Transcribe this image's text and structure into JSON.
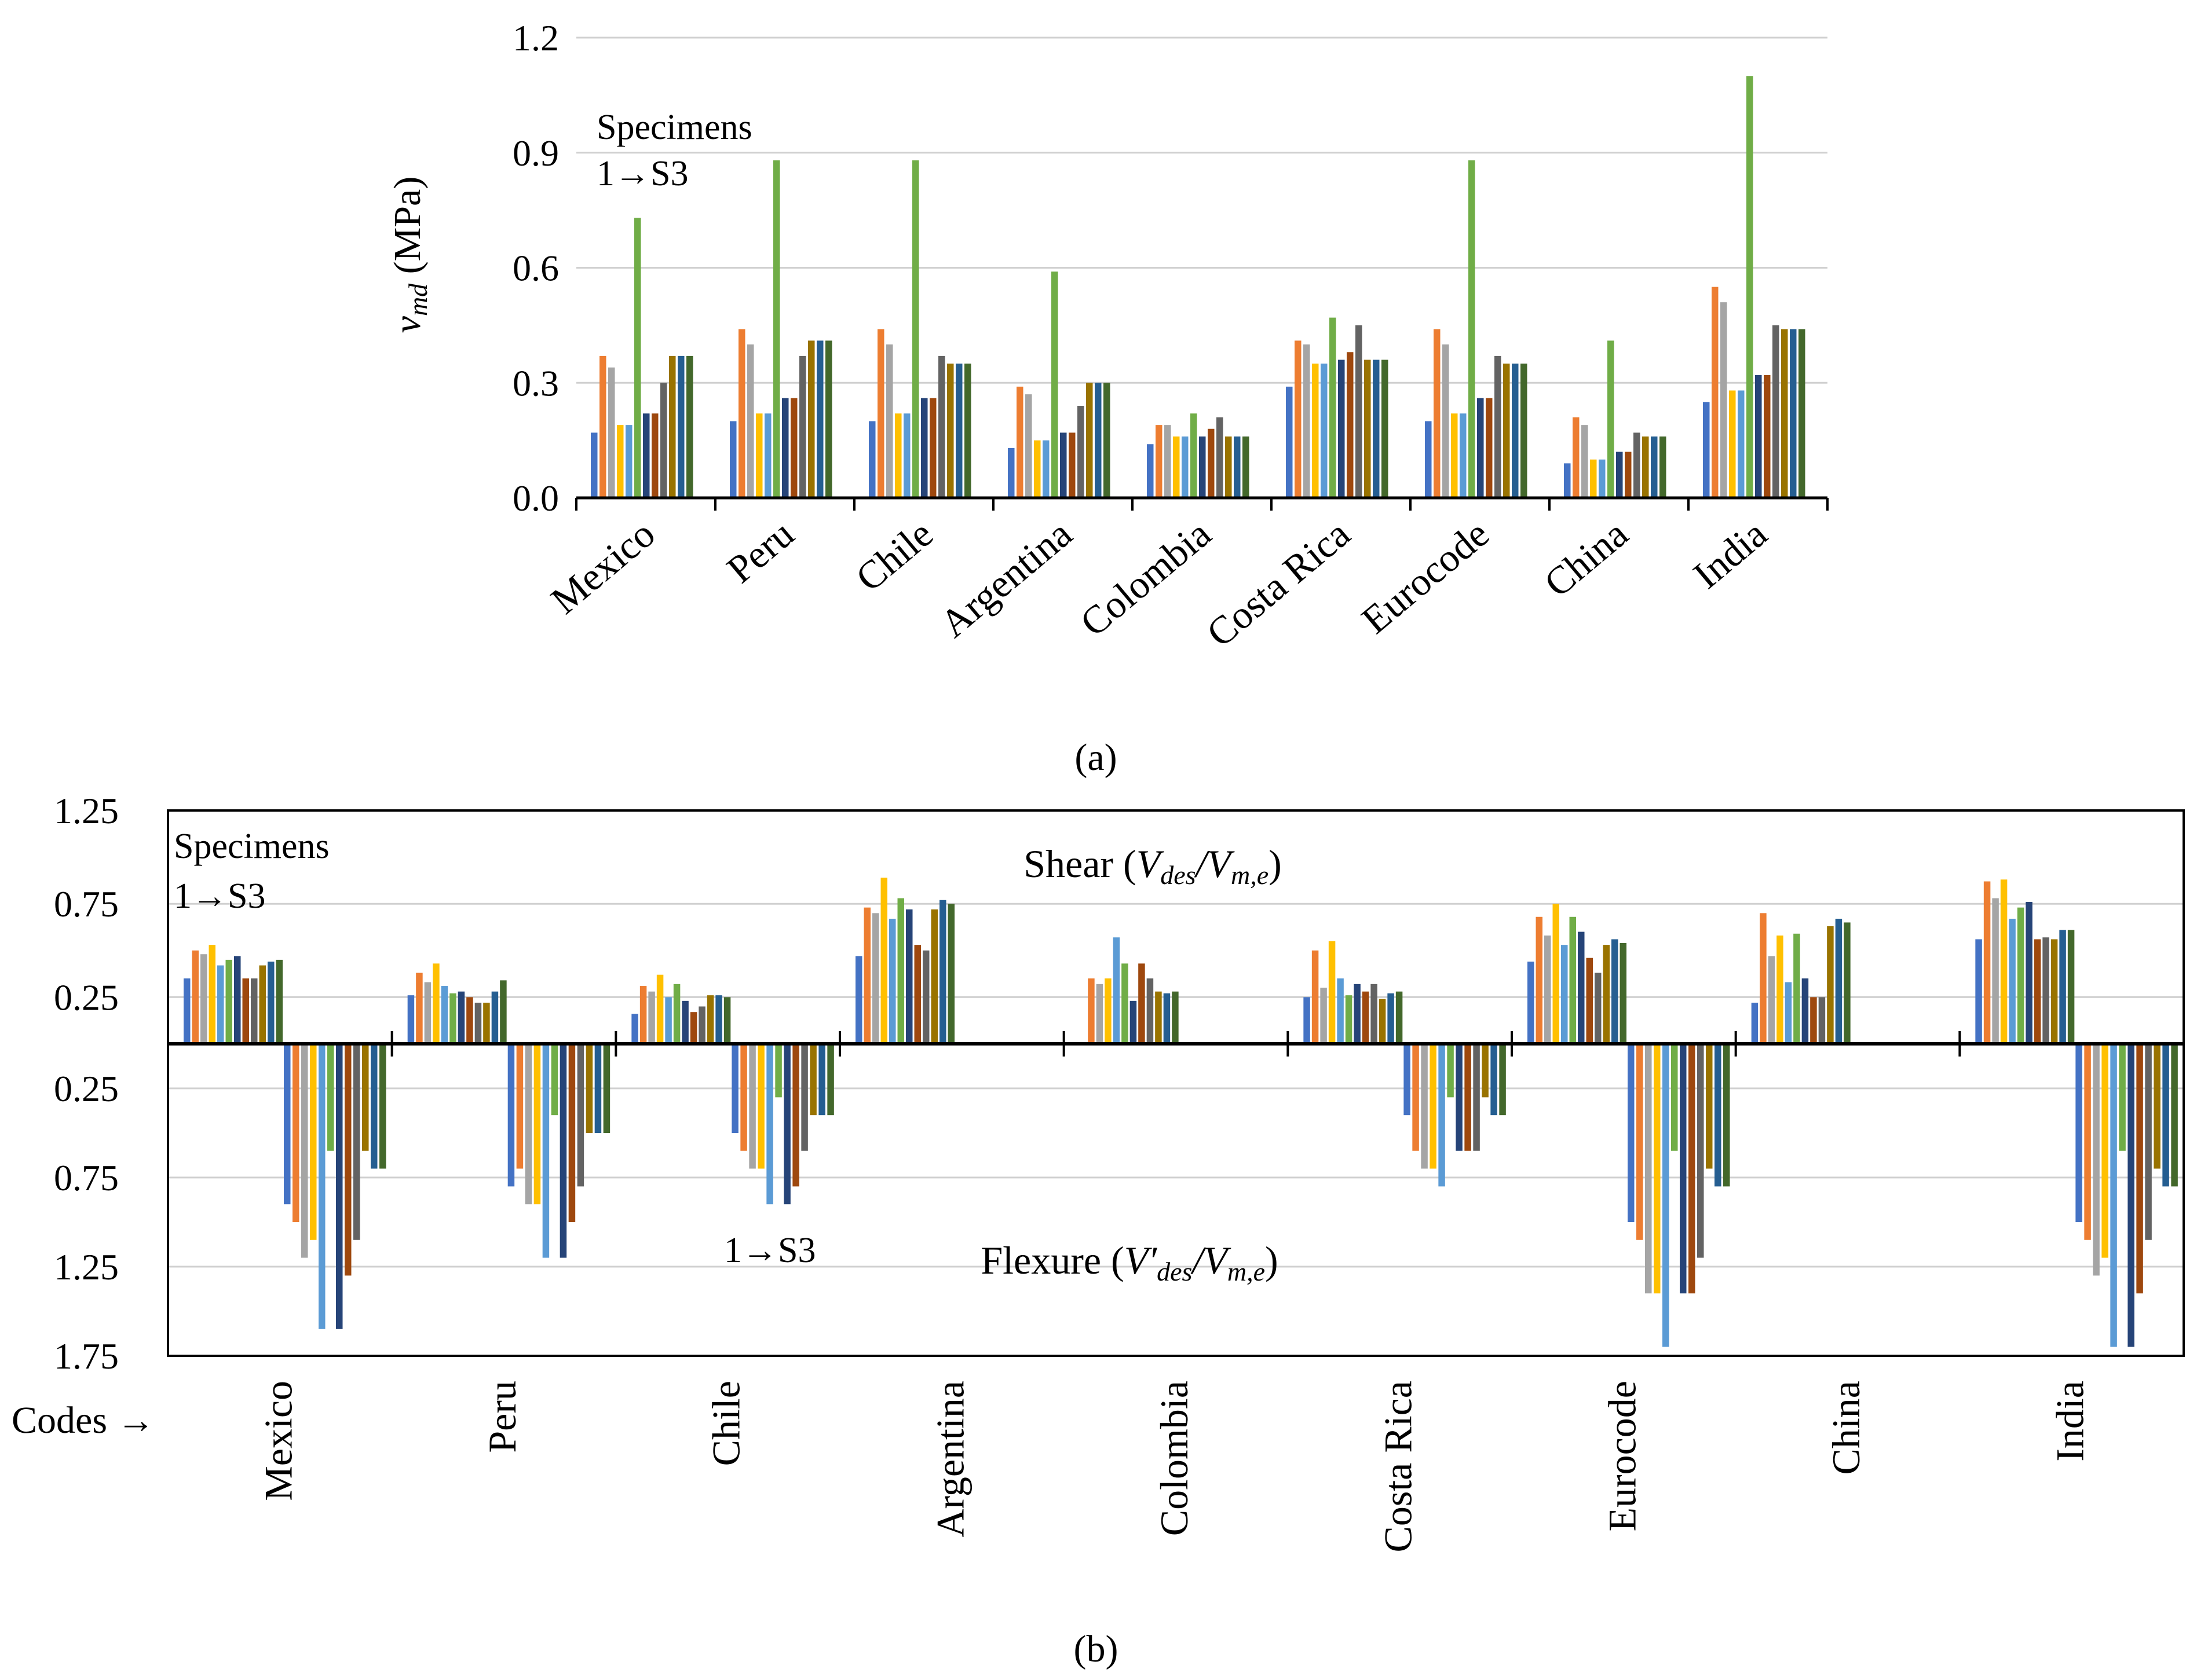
{
  "palette": [
    "#4472C4",
    "#ED7D31",
    "#A5A5A5",
    "#FFC000",
    "#5B9BD5",
    "#70AD47",
    "#264478",
    "#9E480E",
    "#636363",
    "#997300",
    "#255E91",
    "#43682B"
  ],
  "chart_data": [
    {
      "type": "bar",
      "panel_label": "(a)",
      "ylabel_main": "v",
      "ylabel_sub": "md",
      "ylabel_unit": " (MPa)",
      "ylim": [
        0,
        1.2
      ],
      "yticks": [
        "0.0",
        "0.3",
        "0.6",
        "0.9",
        "1.2"
      ],
      "grid": true,
      "annotation_line1": "Specimens",
      "annotation_line2": "1→S3",
      "categories": [
        "Mexico",
        "Peru",
        "Chile",
        "Argentina",
        "Colombia",
        "Costa Rica",
        "Eurocode",
        "China",
        "India"
      ],
      "values_by_category": [
        [
          0.17,
          0.37,
          0.34,
          0.19,
          0.19,
          0.73,
          0.22,
          0.22,
          0.3,
          0.37,
          0.37,
          0.37
        ],
        [
          0.2,
          0.44,
          0.4,
          0.22,
          0.22,
          0.88,
          0.26,
          0.26,
          0.37,
          0.41,
          0.41,
          0.41
        ],
        [
          0.2,
          0.44,
          0.4,
          0.22,
          0.22,
          0.88,
          0.26,
          0.26,
          0.37,
          0.35,
          0.35,
          0.35
        ],
        [
          0.13,
          0.29,
          0.27,
          0.15,
          0.15,
          0.59,
          0.17,
          0.17,
          0.24,
          0.3,
          0.3,
          0.3
        ],
        [
          0.14,
          0.19,
          0.19,
          0.16,
          0.16,
          0.22,
          0.16,
          0.18,
          0.21,
          0.16,
          0.16,
          0.16
        ],
        [
          0.29,
          0.41,
          0.4,
          0.35,
          0.35,
          0.47,
          0.36,
          0.38,
          0.45,
          0.36,
          0.36,
          0.36
        ],
        [
          0.2,
          0.44,
          0.4,
          0.22,
          0.22,
          0.88,
          0.26,
          0.26,
          0.37,
          0.35,
          0.35,
          0.35
        ],
        [
          0.09,
          0.21,
          0.19,
          0.1,
          0.1,
          0.41,
          0.12,
          0.12,
          0.17,
          0.16,
          0.16,
          0.16
        ],
        [
          0.25,
          0.55,
          0.51,
          0.28,
          0.28,
          1.1,
          0.32,
          0.32,
          0.45,
          0.44,
          0.44,
          0.44
        ]
      ]
    },
    {
      "type": "bar",
      "panel_label": "(b)",
      "ylim": [
        -1.75,
        1.25
      ],
      "yticks_top": [
        "1.25",
        "0.75",
        "0.25"
      ],
      "yticks_bottom": [
        "0.25",
        "0.75",
        "1.25",
        "1.75"
      ],
      "grid": true,
      "xlabel": "Codes →",
      "shear_title_prefix": "Shear (",
      "shear_title_v": "V",
      "shear_title_sub1": "des",
      "shear_title_slash": "/V",
      "shear_title_sub2": "m,e",
      "shear_title_suffix": ")",
      "flexure_title_prefix": "Flexure (",
      "flexure_title_v": "V′",
      "flexure_title_sub1": "des",
      "flexure_title_slash": "/V",
      "flexure_title_sub2": "m,e",
      "flexure_title_suffix": ")",
      "annotation_line1": "Specimens",
      "annotation_line2": "1→S3",
      "annotation_flexure": "1→S3",
      "categories": [
        "Mexico",
        "Peru",
        "Chile",
        "Argentina",
        "Colombia",
        "Costa Rica",
        "Eurocode",
        "China",
        "India"
      ],
      "shear_by_category": [
        [
          0.35,
          0.5,
          0.48,
          0.53,
          0.42,
          0.45,
          0.47,
          0.35,
          0.35,
          0.42,
          0.44,
          0.45
        ],
        [
          0.26,
          0.38,
          0.33,
          0.43,
          0.31,
          0.27,
          0.28,
          0.25,
          0.22,
          0.22,
          0.28,
          0.34
        ],
        [
          0.16,
          0.31,
          0.28,
          0.37,
          0.25,
          0.32,
          0.23,
          0.17,
          0.2,
          0.26,
          0.26,
          0.25
        ],
        [
          0.47,
          0.73,
          0.7,
          0.89,
          0.67,
          0.78,
          0.72,
          0.53,
          0.5,
          0.72,
          0.77,
          0.75
        ],
        [
          0.0,
          0.35,
          0.32,
          0.35,
          0.57,
          0.43,
          0.23,
          0.43,
          0.35,
          0.28,
          0.27,
          0.28
        ],
        [
          0.25,
          0.5,
          0.3,
          0.55,
          0.35,
          0.26,
          0.32,
          0.28,
          0.32,
          0.24,
          0.27,
          0.28
        ],
        [
          0.44,
          0.68,
          0.58,
          0.75,
          0.53,
          0.68,
          0.6,
          0.46,
          0.38,
          0.53,
          0.56,
          0.54
        ],
        [
          0.22,
          0.7,
          0.47,
          0.58,
          0.33,
          0.59,
          0.35,
          0.25,
          0.25,
          0.63,
          0.67,
          0.65
        ],
        [
          0.56,
          0.87,
          0.78,
          0.88,
          0.67,
          0.73,
          0.76,
          0.56,
          0.57,
          0.56,
          0.61,
          0.61
        ]
      ],
      "flexure_by_category": [
        [
          0.9,
          1.0,
          1.2,
          1.1,
          1.6,
          0.6,
          1.6,
          1.3,
          1.1,
          0.6,
          0.7,
          0.7
        ],
        [
          0.8,
          0.7,
          0.9,
          0.9,
          1.2,
          0.4,
          1.2,
          1.0,
          0.8,
          0.5,
          0.5,
          0.5
        ],
        [
          0.5,
          0.6,
          0.7,
          0.7,
          0.9,
          0.3,
          0.9,
          0.8,
          0.6,
          0.4,
          0.4,
          0.4
        ],
        [
          0,
          0,
          0,
          0,
          0,
          0,
          0,
          0,
          0,
          0,
          0,
          0
        ],
        [
          0,
          0,
          0,
          0,
          0,
          0,
          0,
          0,
          0,
          0,
          0,
          0
        ],
        [
          0.4,
          0.6,
          0.7,
          0.7,
          0.8,
          0.3,
          0.6,
          0.6,
          0.6,
          0.3,
          0.4,
          0.4
        ],
        [
          1.0,
          1.1,
          1.4,
          1.4,
          1.7,
          0.6,
          1.4,
          1.4,
          1.2,
          0.7,
          0.8,
          0.8
        ],
        [
          0,
          0,
          0,
          0,
          0,
          0,
          0,
          0,
          0,
          0,
          0,
          0
        ],
        [
          1.0,
          1.1,
          1.3,
          1.2,
          1.7,
          0.6,
          1.7,
          1.4,
          1.1,
          0.7,
          0.8,
          0.8
        ]
      ]
    }
  ]
}
